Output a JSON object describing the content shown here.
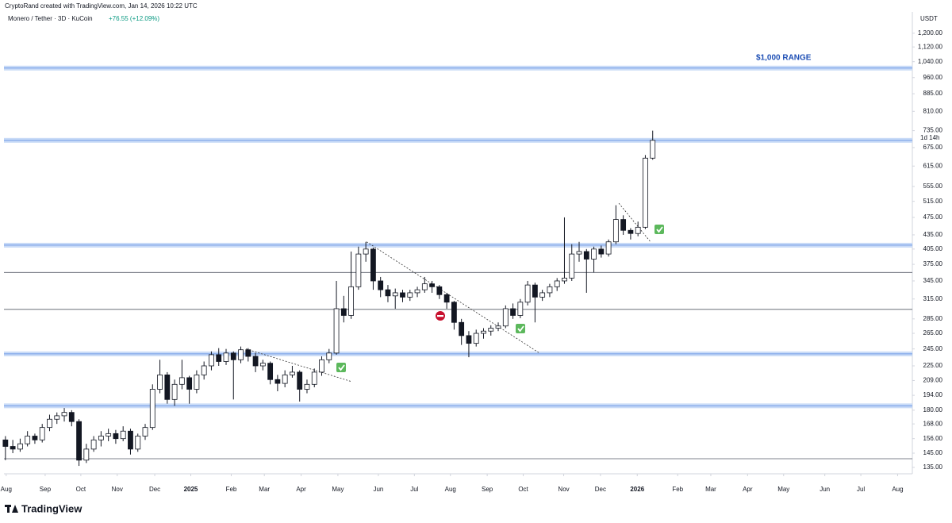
{
  "header": {
    "credit": "CryptoRand created with TradingView.com, Jan 14, 2026 10:22 UTC",
    "symbol": "Monero / Tether · 3D · KuCoin",
    "change": "+76.55 (+12.09%)",
    "currency": "USDT",
    "countdown": "1d 14h",
    "logo": "TradingView"
  },
  "chart_data": {
    "type": "candlestick",
    "log_scale": true,
    "annotations": [
      "$1,000 RANGE"
    ],
    "up_color": "#ffffff",
    "down_color": "#131722",
    "border_color": "#131722",
    "open": [
      155,
      150,
      148,
      152,
      158,
      155,
      165,
      172,
      175,
      178,
      170,
      140,
      148,
      155,
      158,
      160,
      156,
      162,
      148,
      158,
      165,
      200,
      215,
      190,
      205,
      212,
      200,
      215,
      225,
      238,
      230,
      240,
      232,
      244,
      236,
      225,
      228,
      210,
      206,
      215,
      218,
      200,
      205,
      218,
      232,
      240,
      300,
      290,
      335,
      395,
      405,
      345,
      330,
      320,
      325,
      318,
      325,
      330,
      340,
      335,
      322,
      310,
      280,
      262,
      252,
      265,
      268,
      272,
      275,
      300,
      290,
      310,
      338,
      318,
      325,
      335,
      345,
      350,
      395,
      400,
      385,
      405,
      395,
      420,
      470,
      445,
      438,
      452,
      640
    ],
    "high": [
      158,
      155,
      156,
      162,
      160,
      168,
      176,
      178,
      182,
      180,
      172,
      152,
      158,
      162,
      164,
      163,
      166,
      164,
      160,
      168,
      205,
      232,
      218,
      210,
      232,
      214,
      220,
      230,
      242,
      246,
      245,
      242,
      248,
      246,
      240,
      232,
      230,
      215,
      220,
      225,
      220,
      210,
      222,
      236,
      245,
      345,
      320,
      400,
      410,
      420,
      408,
      352,
      338,
      332,
      330,
      330,
      335,
      352,
      345,
      338,
      325,
      312,
      285,
      268,
      270,
      272,
      276,
      280,
      305,
      308,
      315,
      345,
      342,
      330,
      340,
      350,
      475,
      415,
      420,
      405,
      410,
      412,
      425,
      505,
      480,
      450,
      465,
      650,
      735
    ],
    "low": [
      140,
      145,
      146,
      150,
      152,
      153,
      162,
      168,
      170,
      166,
      136,
      138,
      146,
      150,
      154,
      152,
      154,
      144,
      146,
      155,
      163,
      196,
      186,
      184,
      200,
      186,
      196,
      210,
      220,
      225,
      226,
      190,
      228,
      230,
      218,
      220,
      205,
      198,
      202,
      212,
      188,
      196,
      202,
      214,
      228,
      238,
      280,
      285,
      330,
      380,
      330,
      318,
      310,
      300,
      310,
      312,
      318,
      325,
      325,
      315,
      300,
      270,
      250,
      235,
      248,
      258,
      262,
      268,
      272,
      285,
      286,
      305,
      280,
      312,
      318,
      328,
      340,
      345,
      380,
      325,
      360,
      388,
      390,
      415,
      435,
      425,
      432,
      448,
      635
    ],
    "close": [
      150,
      148,
      152,
      158,
      155,
      165,
      172,
      175,
      178,
      170,
      140,
      148,
      155,
      158,
      160,
      156,
      162,
      148,
      158,
      165,
      200,
      215,
      190,
      205,
      212,
      200,
      215,
      225,
      238,
      230,
      240,
      232,
      244,
      236,
      225,
      228,
      210,
      206,
      215,
      218,
      200,
      205,
      218,
      232,
      240,
      300,
      290,
      335,
      395,
      405,
      345,
      330,
      320,
      325,
      318,
      325,
      330,
      340,
      335,
      322,
      310,
      280,
      262,
      252,
      265,
      268,
      272,
      275,
      300,
      290,
      310,
      338,
      318,
      325,
      335,
      345,
      350,
      395,
      400,
      385,
      405,
      395,
      420,
      470,
      445,
      438,
      452,
      640,
      700
    ],
    "xlim": [
      -0.2,
      123.3
    ],
    "xticks": [
      {
        "value": 0.1,
        "label": "Aug"
      },
      {
        "value": 5.4,
        "label": "Sep"
      },
      {
        "value": 10.25,
        "label": "Oct"
      },
      {
        "value": 15.2,
        "label": "Nov"
      },
      {
        "value": 20.3,
        "label": "Dec"
      },
      {
        "value": 25.2,
        "label": "2025"
      },
      {
        "value": 30.7,
        "label": "Feb"
      },
      {
        "value": 35.2,
        "label": "Mar"
      },
      {
        "value": 40.2,
        "label": "Apr"
      },
      {
        "value": 45.2,
        "label": "May"
      },
      {
        "value": 50.7,
        "label": "Jun"
      },
      {
        "value": 55.6,
        "label": "Jul"
      },
      {
        "value": 60.5,
        "label": "Aug"
      },
      {
        "value": 65.5,
        "label": "Sep"
      },
      {
        "value": 70.4,
        "label": "Oct"
      },
      {
        "value": 75.9,
        "label": "Nov"
      },
      {
        "value": 80.9,
        "label": "Dec"
      },
      {
        "value": 85.9,
        "label": "2026"
      },
      {
        "value": 91.4,
        "label": "Feb"
      },
      {
        "value": 95.9,
        "label": "Mar"
      },
      {
        "value": 100.9,
        "label": "Apr"
      },
      {
        "value": 105.8,
        "label": "May"
      },
      {
        "value": 111.4,
        "label": "Jun"
      },
      {
        "value": 116.3,
        "label": "Jul"
      },
      {
        "value": 121.3,
        "label": "Aug"
      }
    ],
    "ylim": [
      130.7,
      1336
    ],
    "yticks": [
      {
        "value": 1200,
        "label": "1,200.00"
      },
      {
        "value": 1120,
        "label": "1,120.00"
      },
      {
        "value": 1040,
        "label": "1,040.00"
      },
      {
        "value": 960,
        "label": "960.00"
      },
      {
        "value": 885,
        "label": "885.00"
      },
      {
        "value": 810,
        "label": "810.00"
      },
      {
        "value": 735,
        "label": "735.00"
      },
      {
        "value": 675,
        "label": "675.00"
      },
      {
        "value": 615,
        "label": "615.00"
      },
      {
        "value": 555,
        "label": "555.00"
      },
      {
        "value": 515,
        "label": "515.00"
      },
      {
        "value": 475,
        "label": "475.00"
      },
      {
        "value": 435,
        "label": "435.00"
      },
      {
        "value": 405,
        "label": "405.00"
      },
      {
        "value": 375,
        "label": "375.00"
      },
      {
        "value": 345,
        "label": "345.00"
      },
      {
        "value": 315,
        "label": "315.00"
      },
      {
        "value": 285,
        "label": "285.00"
      },
      {
        "value": 265,
        "label": "265.00"
      },
      {
        "value": 245,
        "label": "245.00"
      },
      {
        "value": 225,
        "label": "225.00"
      },
      {
        "value": 209,
        "label": "209.00"
      },
      {
        "value": 194,
        "label": "194.00"
      },
      {
        "value": 180,
        "label": "180.00"
      },
      {
        "value": 168,
        "label": "168.00"
      },
      {
        "value": 156,
        "label": "156.00"
      },
      {
        "value": 145,
        "label": "145.00"
      },
      {
        "value": 135,
        "label": "135.00"
      }
    ],
    "levels": [
      {
        "value": 1007,
        "style": "band"
      },
      {
        "value": 700,
        "style": "band"
      },
      {
        "value": 413,
        "style": "band"
      },
      {
        "value": 239,
        "style": "band"
      },
      {
        "value": 184,
        "style": "band"
      },
      {
        "value": 360,
        "style": "line"
      },
      {
        "value": 299,
        "style": "line"
      },
      {
        "value": 141,
        "style": "line"
      }
    ],
    "band_color": "#c9dbf7",
    "band_line_color": "#6f9ae6",
    "level_line_color": "#555a66",
    "trendlines": [
      {
        "x": [
          49.1,
          72.6
        ],
        "y": [
          420,
          240
        ]
      },
      {
        "x": [
          32.7,
          47.0
        ],
        "y": [
          245,
          208
        ]
      },
      {
        "x": [
          83.4,
          87.7
        ],
        "y": [
          510,
          420
        ]
      }
    ]
  }
}
